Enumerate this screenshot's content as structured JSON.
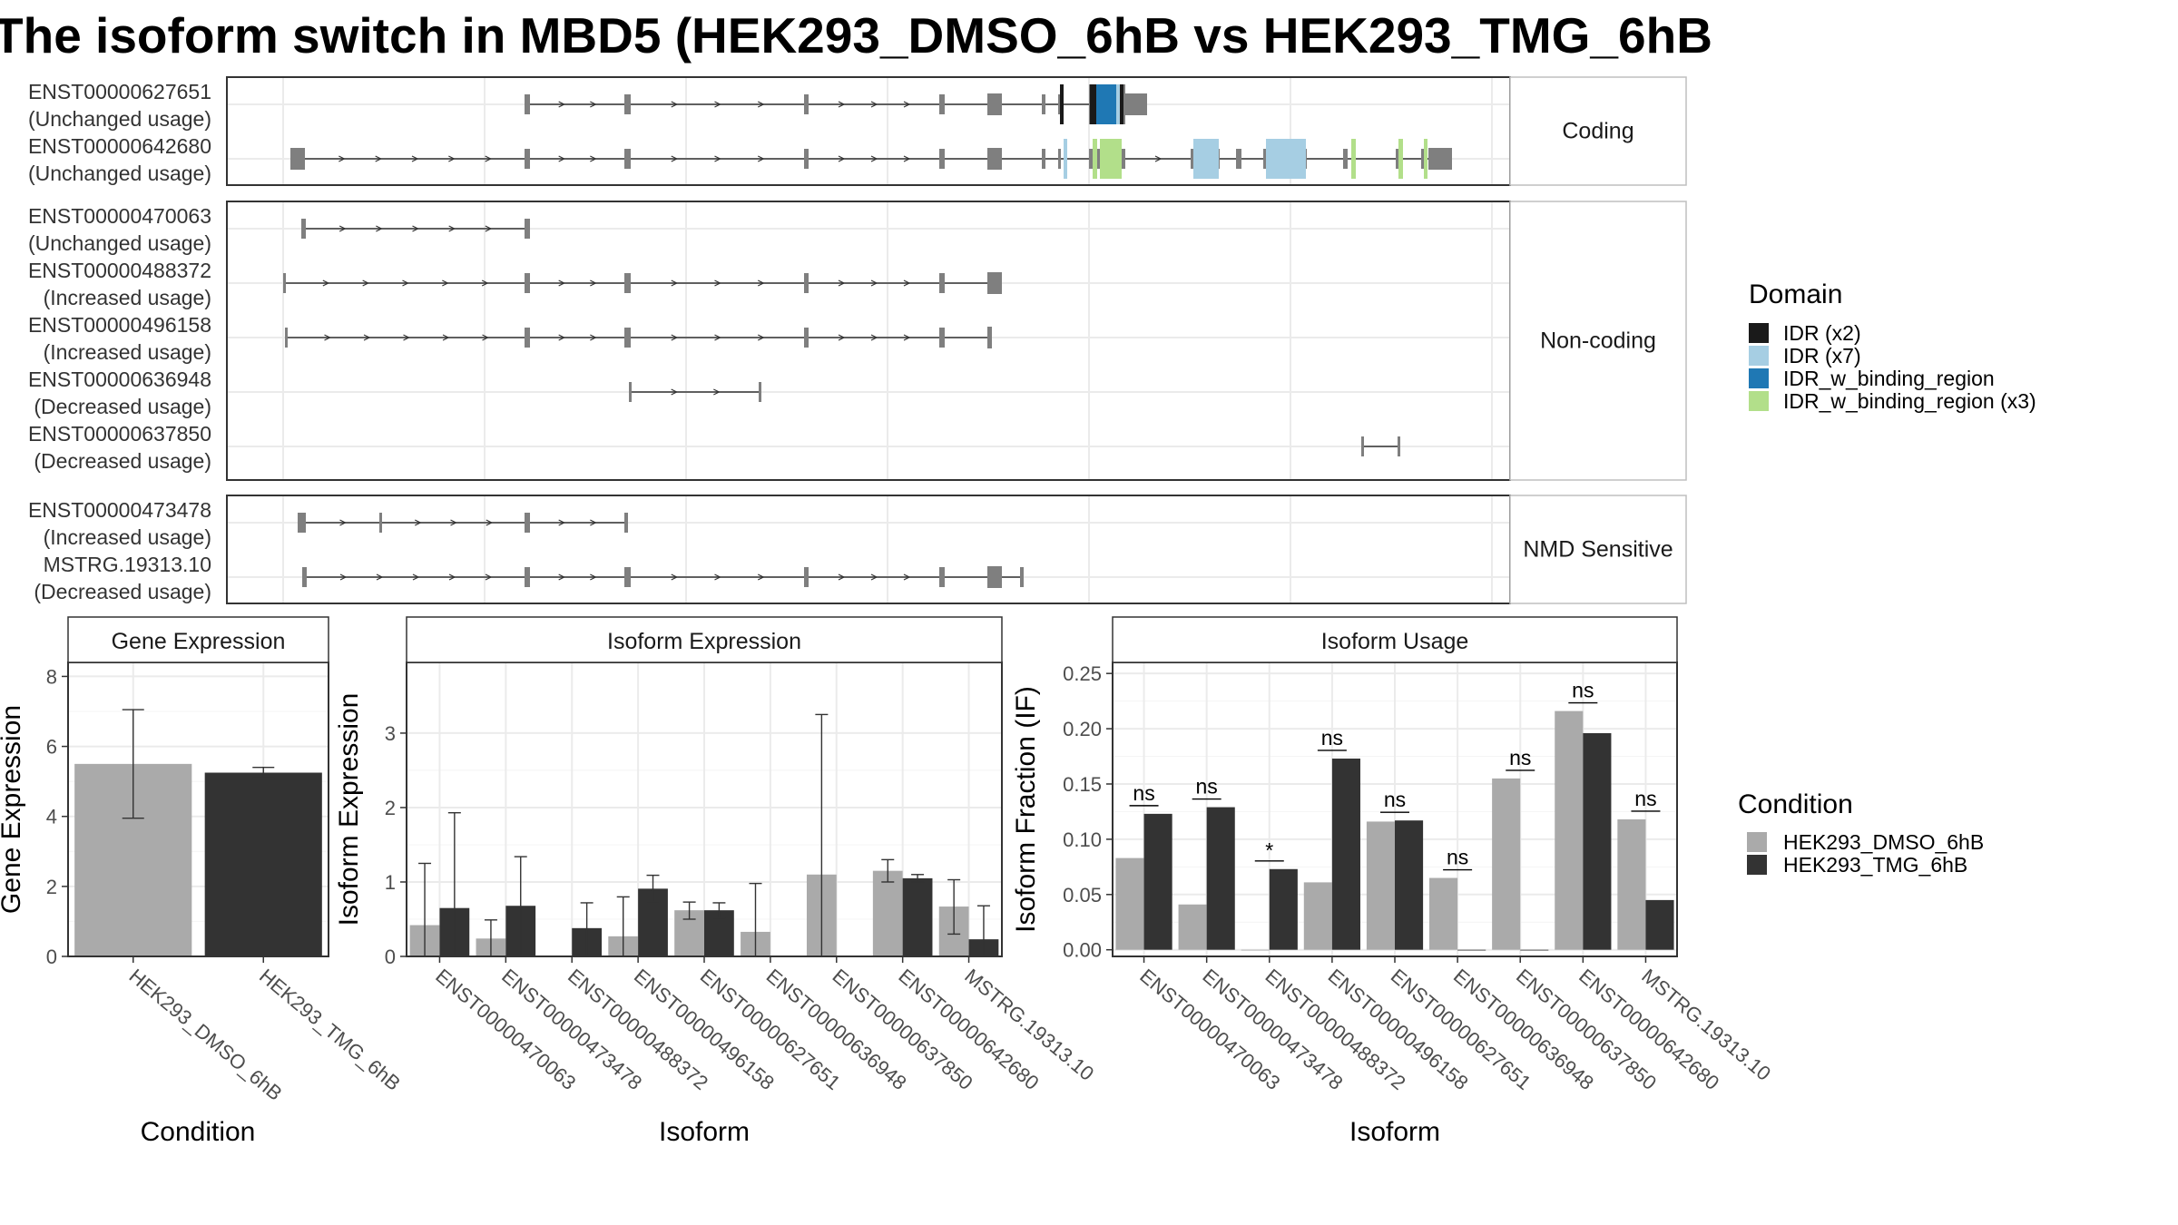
{
  "chart_data": [
    {
      "type": "transcript-structure",
      "title": "The isoform switch in MBD5 (HEK293_DMSO_6hB vs HEK293_TMG_6hB",
      "panels": [
        {
          "label": "Coding",
          "transcripts": [
            {
              "id": "ENST00000627651",
              "usage": "(Unchanged usage)"
            },
            {
              "id": "ENST00000642680",
              "usage": "(Unchanged usage)"
            }
          ]
        },
        {
          "label": "Non-coding",
          "transcripts": [
            {
              "id": "ENST00000470063",
              "usage": "(Unchanged usage)"
            },
            {
              "id": "ENST00000488372",
              "usage": "(Increased usage)"
            },
            {
              "id": "ENST00000496158",
              "usage": "(Increased usage)"
            },
            {
              "id": "ENST00000636948",
              "usage": "(Decreased usage)"
            },
            {
              "id": "ENST00000637850",
              "usage": "(Decreased usage)"
            }
          ]
        },
        {
          "label": "NMD Sensitive",
          "transcripts": [
            {
              "id": "ENST00000473478",
              "usage": "(Increased usage)"
            },
            {
              "id": "MSTRG.19313.10",
              "usage": "(Decreased usage)"
            }
          ]
        }
      ],
      "legend": {
        "title": "Domain",
        "items": [
          {
            "label": "IDR (x2)",
            "color": "#1a1a1a"
          },
          {
            "label": "IDR (x7)",
            "color": "#a6cee3"
          },
          {
            "label": "IDR_w_binding_region",
            "color": "#1f78b4"
          },
          {
            "label": "IDR_w_binding_region (x3)",
            "color": "#b2df8a"
          }
        ]
      }
    },
    {
      "type": "bar",
      "strip": "Gene Expression",
      "xlabel": "Condition",
      "ylabel": "Gene Expression",
      "ylim": [
        0,
        8.4
      ],
      "yticks": [
        "0",
        "2",
        "4",
        "6",
        "8"
      ],
      "categories": [
        "HEK293_DMSO_6hB",
        "HEK293_TMG_6hB"
      ],
      "values": [
        5.5,
        5.25
      ],
      "error": [
        [
          3.95,
          7.05
        ],
        [
          5.1,
          5.4
        ]
      ],
      "colors": [
        "#aaaaaa",
        "#333333"
      ]
    },
    {
      "type": "bar",
      "strip": "Isoform Expression",
      "xlabel": "Isoform",
      "ylabel": "Isoform Expression",
      "ylim": [
        0,
        3.95
      ],
      "yticks": [
        "0",
        "1",
        "2",
        "3"
      ],
      "categories": [
        "ENST00000470063",
        "ENST00000473478",
        "ENST00000488372",
        "ENST00000496158",
        "ENST00000627651",
        "ENST00000636948",
        "ENST00000637850",
        "ENST00000642680",
        "MSTRG.19313.10"
      ],
      "series": [
        {
          "name": "HEK293_DMSO_6hB",
          "values": [
            0.42,
            0.24,
            0.0,
            0.27,
            0.62,
            0.33,
            1.1,
            1.15,
            0.67
          ],
          "error": [
            [
              0,
              1.25
            ],
            [
              0,
              0.49
            ],
            [
              0,
              0
            ],
            [
              0,
              0.8
            ],
            [
              0.5,
              0.73
            ],
            [
              0,
              0.98
            ],
            [
              0,
              3.25
            ],
            [
              1.0,
              1.3
            ],
            [
              0.3,
              1.03
            ]
          ]
        },
        {
          "name": "HEK293_TMG_6hB",
          "values": [
            0.65,
            0.68,
            0.38,
            0.91,
            0.62,
            0.0,
            0.0,
            1.05,
            0.23
          ],
          "error": [
            [
              0,
              1.93
            ],
            [
              0,
              1.34
            ],
            [
              0,
              0.72
            ],
            [
              0.73,
              1.09
            ],
            [
              0.52,
              0.72
            ],
            [
              0,
              0
            ],
            [
              0,
              0
            ],
            [
              1.0,
              1.1
            ],
            [
              0,
              0.68
            ]
          ]
        }
      ]
    },
    {
      "type": "bar",
      "strip": "Isoform Usage",
      "xlabel": "Isoform",
      "ylabel": "Isoform Fraction (IF)",
      "ylim": [
        -0.006,
        0.26
      ],
      "yticks": [
        "0.00",
        "0.05",
        "0.10",
        "0.15",
        "0.20",
        "0.25"
      ],
      "categories": [
        "ENST00000470063",
        "ENST00000473478",
        "ENST00000488372",
        "ENST00000496158",
        "ENST00000627651",
        "ENST00000636948",
        "ENST00000637850",
        "ENST00000642680",
        "MSTRG.19313.10"
      ],
      "series": [
        {
          "name": "HEK293_DMSO_6hB",
          "values": [
            0.083,
            0.041,
            0.0,
            0.061,
            0.116,
            0.065,
            0.155,
            0.216,
            0.118
          ]
        },
        {
          "name": "HEK293_TMG_6hB",
          "values": [
            0.123,
            0.129,
            0.073,
            0.173,
            0.117,
            0.0,
            0.0,
            0.196,
            0.045
          ]
        }
      ],
      "significance": [
        "ns",
        "ns",
        "*",
        "ns",
        "ns",
        "ns",
        "ns",
        "ns",
        "ns"
      ],
      "legend": {
        "title": "Condition",
        "items": [
          {
            "label": "HEK293_DMSO_6hB",
            "color": "#aaaaaa"
          },
          {
            "label": "HEK293_TMG_6hB",
            "color": "#333333"
          }
        ]
      }
    }
  ]
}
